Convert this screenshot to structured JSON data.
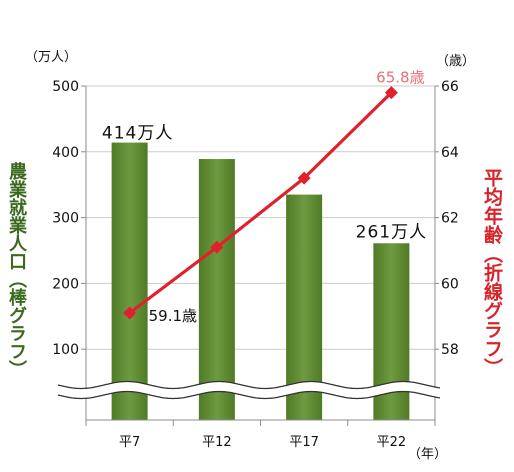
{
  "chart_data": {
    "type": "bar",
    "categories": [
      "平7",
      "平12",
      "平17",
      "平22"
    ],
    "x_unit": "（年）",
    "ylabel": "農業就業人口（棒グラフ）",
    "y_unit": "（万人）",
    "ylim": [
      0,
      500
    ],
    "yticks": [
      100,
      200,
      300,
      400,
      500
    ],
    "y2label": "平均年齢（折線グラフ）",
    "y2_unit": "（歳）",
    "y2lim": [
      56,
      66
    ],
    "y2ticks": [
      58,
      60,
      62,
      64,
      66
    ],
    "grid": true,
    "axis_break": true,
    "series": [
      {
        "type": "bar",
        "axis": "y",
        "values": [
          414,
          389,
          335,
          261
        ],
        "color": "#5e8f2c"
      },
      {
        "type": "line",
        "axis": "y2",
        "values": [
          59.1,
          61.1,
          63.2,
          65.8
        ],
        "color": "#e0212b",
        "marker": "diamond"
      }
    ],
    "annotations": [
      {
        "text": "414万人",
        "series": 0,
        "index": 0
      },
      {
        "text": "261万人",
        "series": 0,
        "index": 3
      },
      {
        "text": "59.1歳",
        "series": 1,
        "index": 0
      },
      {
        "text": "65.8歳",
        "series": 1,
        "index": 3,
        "color": "#ea7078"
      }
    ],
    "colors": {
      "ylabel": "#3b6a1e",
      "y2label": "#d9232b"
    }
  }
}
